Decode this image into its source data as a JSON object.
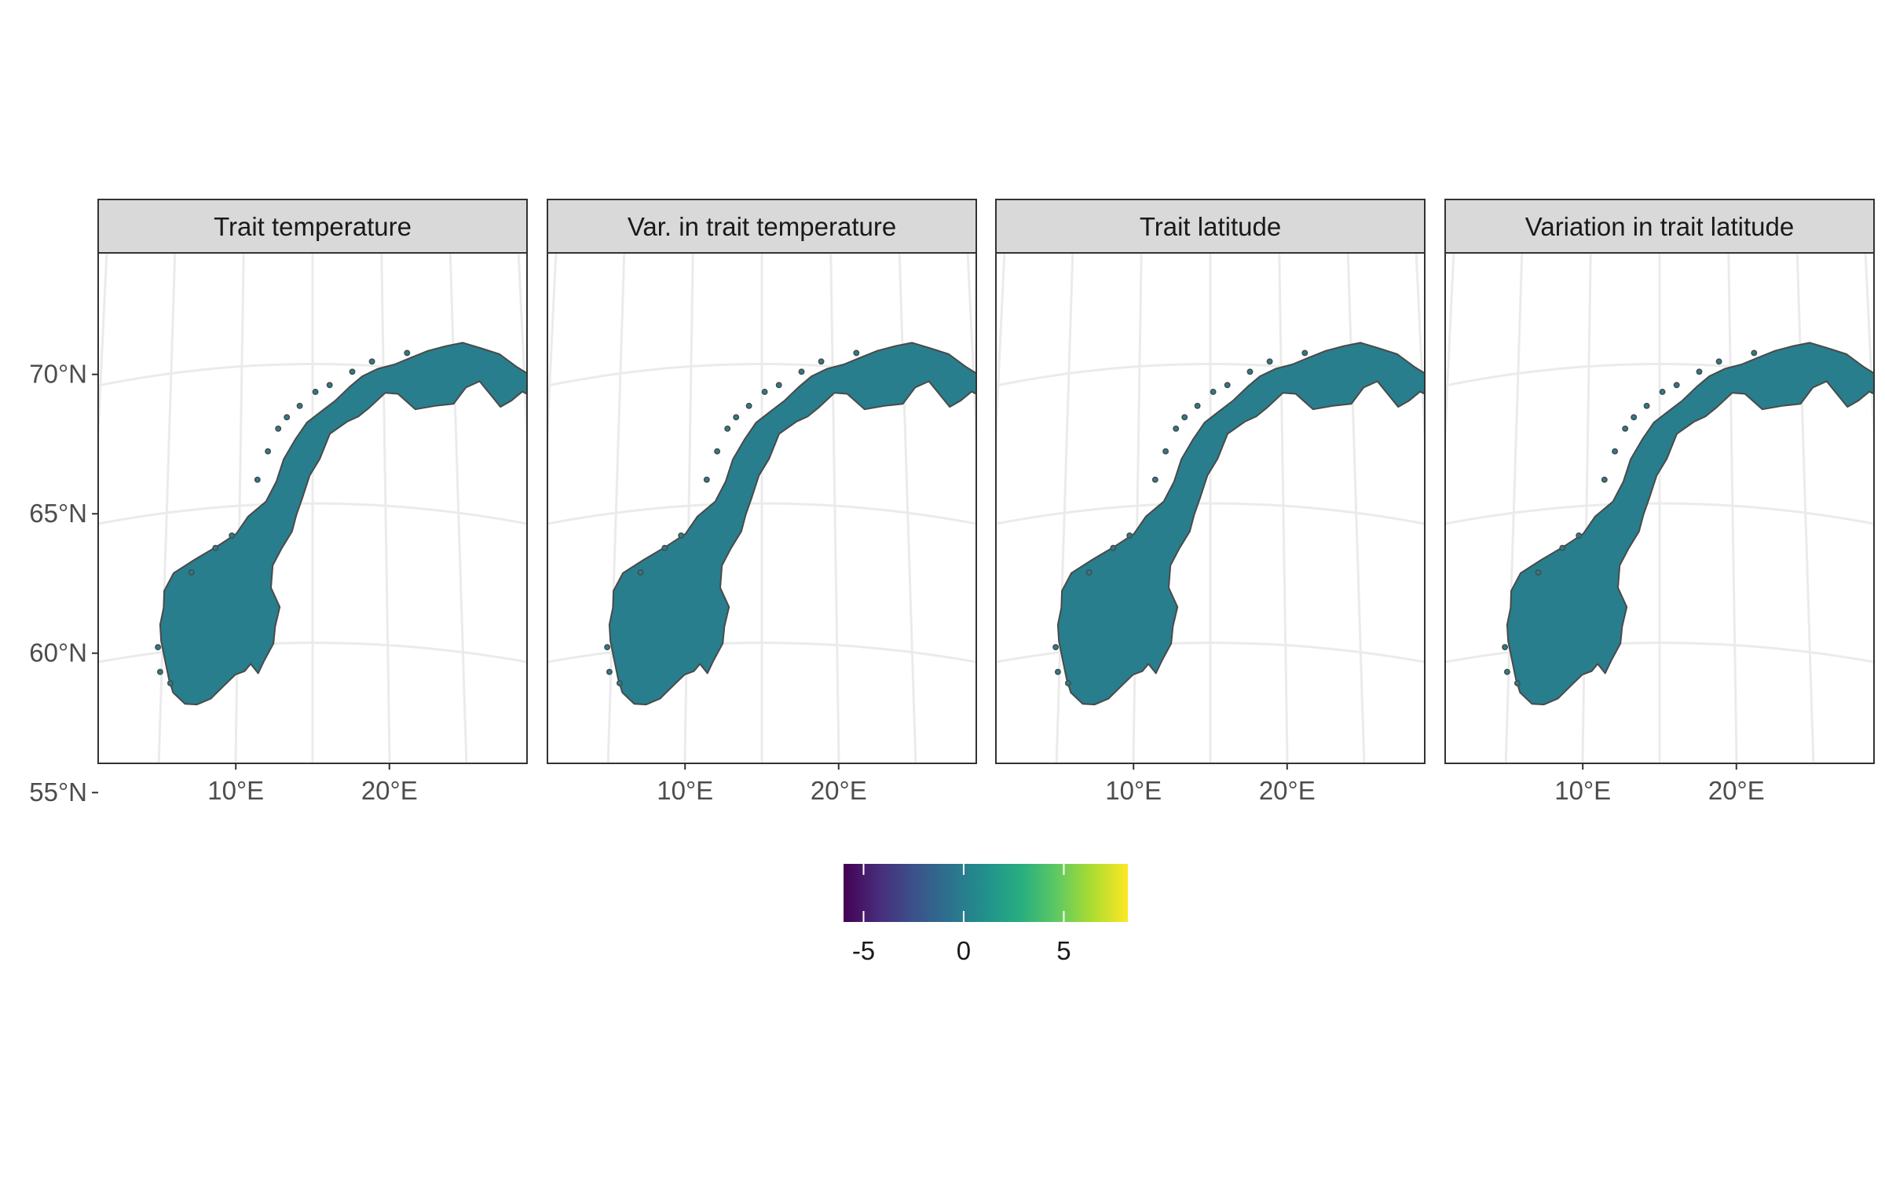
{
  "chart_data": {
    "type": "map",
    "layout": "facets",
    "map_region": "Norway",
    "grid": true,
    "projection_graticule": true,
    "panels": [
      {
        "title": "Trait temperature",
        "value": 0
      },
      {
        "title": "Var. in trait temperature",
        "value": 0
      },
      {
        "title": "Trait latitude",
        "value": 0
      },
      {
        "title": "Variation in trait latitude",
        "value": 0
      }
    ],
    "lat_ticks": [
      {
        "value": 70,
        "label": "70°N"
      },
      {
        "value": 65,
        "label": "65°N"
      },
      {
        "value": 60,
        "label": "60°N"
      },
      {
        "value": 55,
        "label": "55°N"
      }
    ],
    "lon_ticks": [
      {
        "value": 10,
        "label": "10°E"
      },
      {
        "value": 20,
        "label": "20°E"
      }
    ],
    "legend": {
      "placement": "bottom",
      "palette": "viridis",
      "range": [
        -6,
        8.2
      ],
      "ticks": [
        {
          "value": -5,
          "label": "-5"
        },
        {
          "value": 0,
          "label": "0"
        },
        {
          "value": 5,
          "label": "5"
        }
      ]
    }
  },
  "colors": {
    "land_fill": "#3a7f8d",
    "land_border": "#4a4a4a",
    "strip_fill": "#d9d9d9",
    "panel_border": "#333333",
    "grid_line": "#ebebeb",
    "viridis": [
      "#440154",
      "#472d7b",
      "#3b528b",
      "#2c728e",
      "#21918c",
      "#28ae80",
      "#5ec962",
      "#addc30",
      "#fde725"
    ]
  }
}
